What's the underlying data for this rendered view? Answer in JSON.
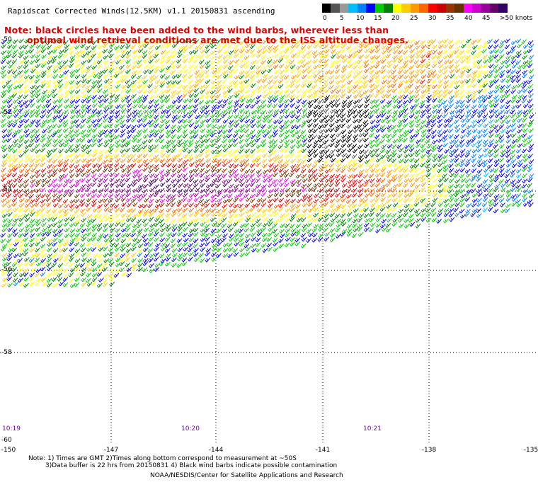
{
  "title": "Rapidscat Corrected Winds(12.5KM) v1.1 20150831 ascending",
  "note_line1": "Note: black circles have been added to the wind barbs, wherever less than",
  "note_line2": "optimal wind retrieval conditions are met due to the ISS altitude changes.",
  "legend": {
    "colors": [
      "#000000",
      "#555555",
      "#999999",
      "#00bfff",
      "#0080ff",
      "#0000ff",
      "#00cc00",
      "#008000",
      "#ffff00",
      "#ffcc00",
      "#ff9900",
      "#ff6600",
      "#ff0000",
      "#cc0000",
      "#993300",
      "#663300",
      "#ff00ff",
      "#cc00cc",
      "#990099",
      "#660066",
      "#330066"
    ],
    "labels": [
      {
        "text": "0",
        "x": 456
      },
      {
        "text": "5",
        "x": 480
      },
      {
        "text": "10",
        "x": 503
      },
      {
        "text": "15",
        "x": 528
      },
      {
        "text": "20",
        "x": 553
      },
      {
        "text": "25",
        "x": 579
      },
      {
        "text": "30",
        "x": 605
      },
      {
        "text": "35",
        "x": 630
      },
      {
        "text": "40",
        "x": 656
      },
      {
        "text": "45",
        "x": 681
      },
      {
        "text": ">50 knots",
        "x": 706
      }
    ]
  },
  "lat_labels": [
    "-50",
    "-52",
    "-54",
    "-56",
    "-58",
    "-60"
  ],
  "lon_labels": [
    "-150",
    "-147",
    "-144",
    "-141",
    "-138",
    "-135"
  ],
  "time_labels": [
    "10:19",
    "10:20",
    "10:21"
  ],
  "footer": {
    "line1": "Note: 1) Times are GMT 2)Times along bottom correspond to measurement at ~50S",
    "line2": "3)Data buffer is 22 hrs from 20150831 4) Black wind barbs indicate possible contamination",
    "line3": "NOAA/NESDIS/Center for Satellite Applications and Research"
  }
}
